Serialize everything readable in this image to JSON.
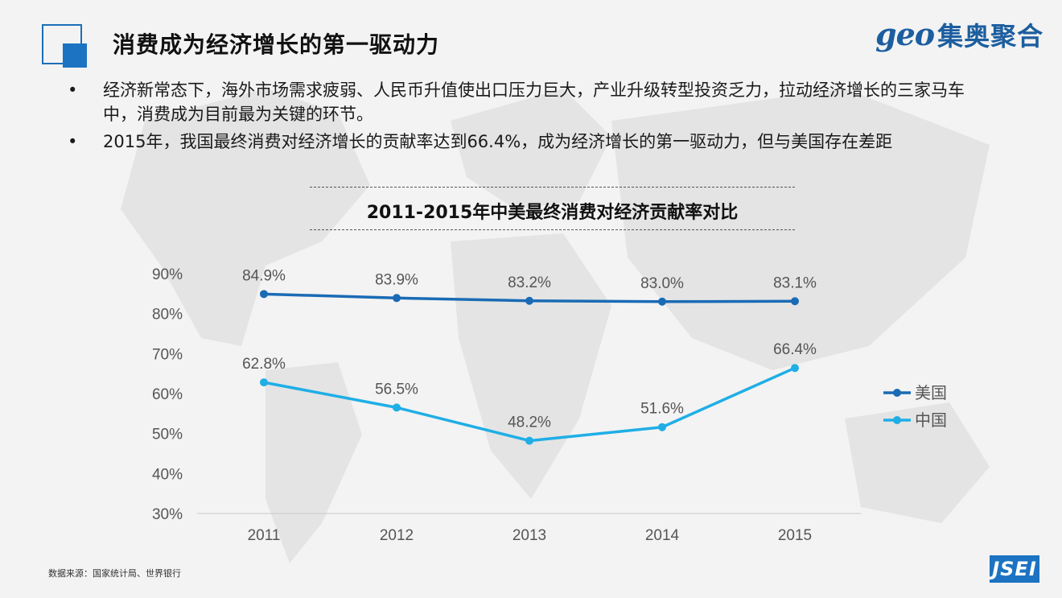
{
  "header": {
    "title": "消费成为经济增长的第一驱动力",
    "logo_latin": "geo",
    "logo_cn": "集奥聚合"
  },
  "bullets": [
    {
      "marker": "•",
      "text": "经济新常态下，海外市场需求疲弱、人民币升值使出口压力巨大，产业升级转型投资乏力，拉动经济增长的三家马车中，消费成为目前最为关键的环节。"
    },
    {
      "marker": "•",
      "text": "2015年，我国最终消费对经济增长的贡献率达到66.4%，成为经济增长的第一驱动力，但与美国存在差距"
    }
  ],
  "chart_data": {
    "type": "line",
    "title": "2011-2015年中美最终消费对经济贡献率对比",
    "categories": [
      "2011",
      "2012",
      "2013",
      "2014",
      "2015"
    ],
    "series": [
      {
        "name": "美国",
        "values": [
          84.9,
          83.9,
          83.2,
          83.0,
          83.1
        ],
        "labels": [
          "84.9%",
          "83.9%",
          "83.2%",
          "83.0%",
          "83.1%"
        ],
        "color": "#1a6bb5"
      },
      {
        "name": "中国",
        "values": [
          62.8,
          56.5,
          48.2,
          51.6,
          66.4
        ],
        "labels": [
          "62.8%",
          "56.5%",
          "48.2%",
          "51.6%",
          "66.4%"
        ],
        "color": "#1faee6"
      }
    ],
    "ylim": [
      30,
      90
    ],
    "yticks": [
      "30%",
      "40%",
      "50%",
      "60%",
      "70%",
      "80%",
      "90%"
    ],
    "legend_position": "right",
    "grid": false
  },
  "footer": {
    "source": "数据来源：国家统计局、世界银行",
    "badge": "JSEI"
  },
  "colors": {
    "accent": "#1c73c1",
    "us": "#1a6bb5",
    "cn": "#1faee6"
  }
}
